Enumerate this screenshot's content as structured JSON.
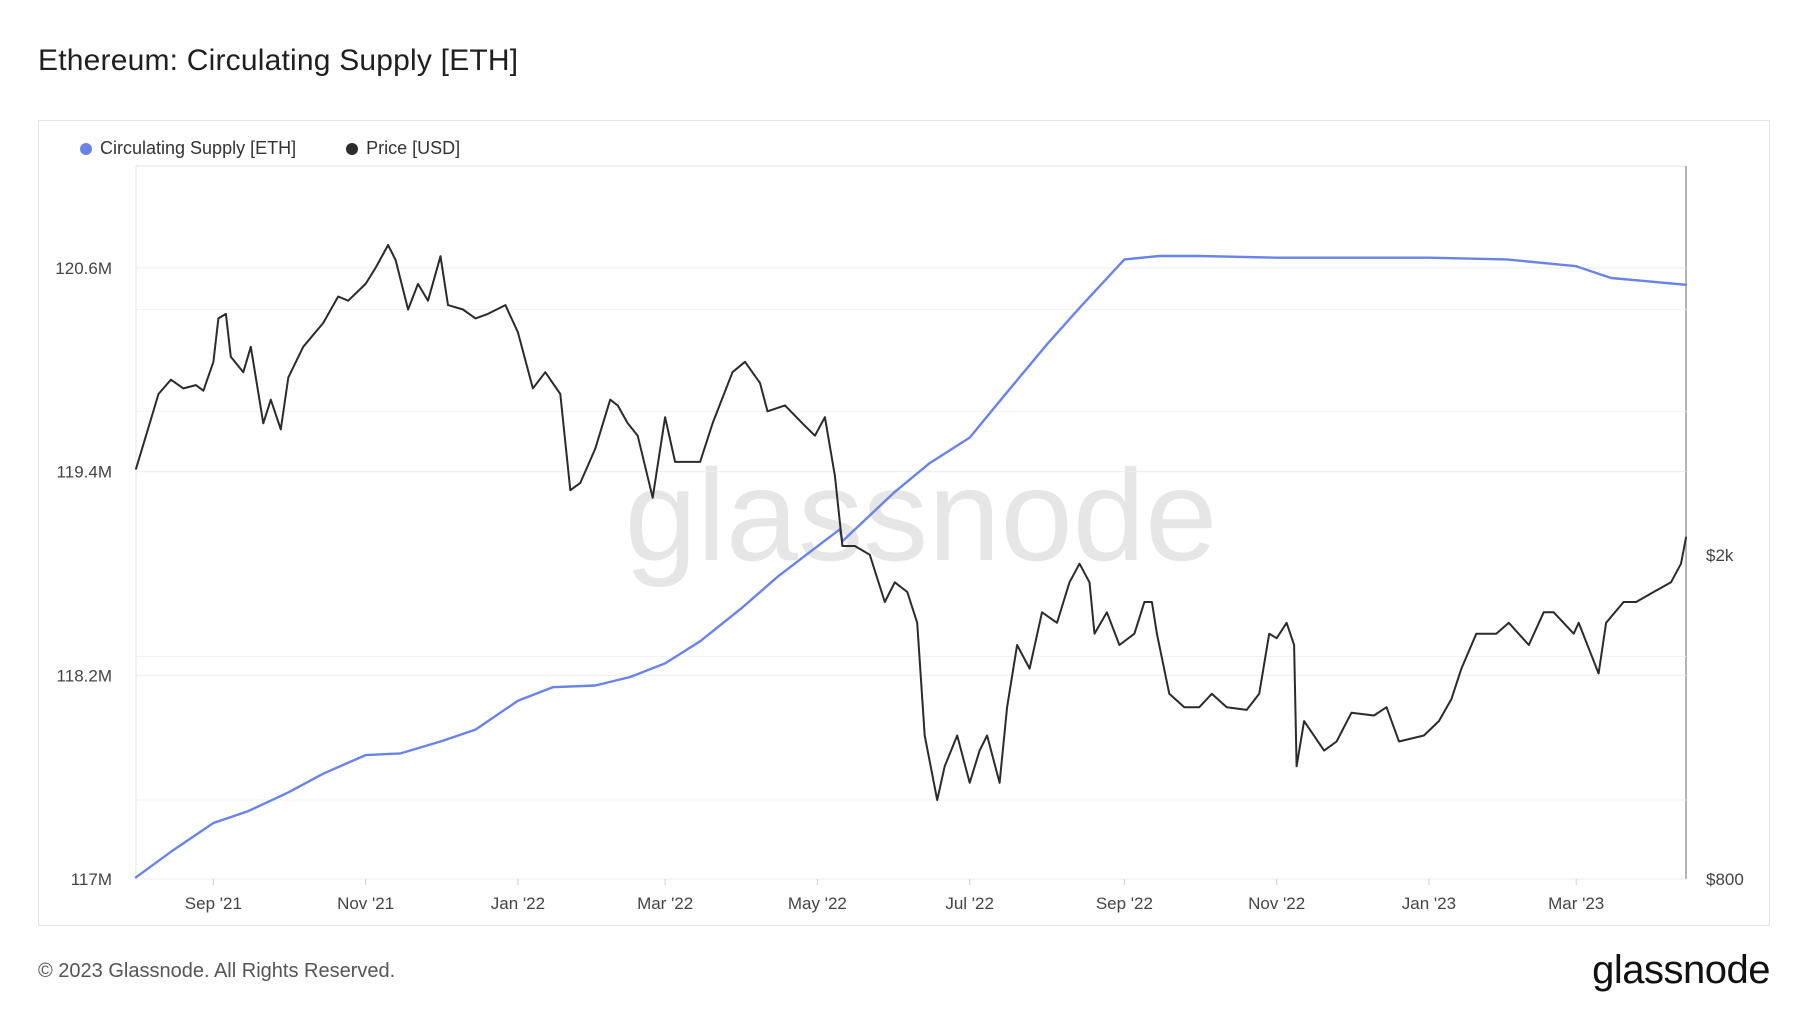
{
  "page": {
    "title": "Ethereum: Circulating Supply [ETH]",
    "copyright": "© 2023 Glassnode. All Rights Reserved.",
    "logo_text": "glassnode",
    "watermark": "glassnode"
  },
  "legend": [
    {
      "label": "Circulating Supply [ETH]",
      "color": "#6a83e6"
    },
    {
      "label": "Price [USD]",
      "color": "#2b2b2b"
    }
  ],
  "chart_data": {
    "type": "line",
    "title": "Ethereum: Circulating Supply [ETH]",
    "x_range": [
      "2021-08-01",
      "2023-04-14"
    ],
    "x_ticks": [
      {
        "date": "2021-09-01",
        "label": "Sep '21"
      },
      {
        "date": "2021-11-01",
        "label": "Nov '21"
      },
      {
        "date": "2022-01-01",
        "label": "Jan '22"
      },
      {
        "date": "2022-03-01",
        "label": "Mar '22"
      },
      {
        "date": "2022-05-01",
        "label": "May '22"
      },
      {
        "date": "2022-07-01",
        "label": "Jul '22"
      },
      {
        "date": "2022-09-01",
        "label": "Sep '22"
      },
      {
        "date": "2022-11-01",
        "label": "Nov '22"
      },
      {
        "date": "2023-01-01",
        "label": "Jan '23"
      },
      {
        "date": "2023-03-01",
        "label": "Mar '23"
      }
    ],
    "y_left": {
      "range": [
        117000000,
        121200000
      ],
      "ticks": [
        {
          "value": 117000000,
          "label": "117M"
        },
        {
          "value": 118200000,
          "label": "118.2M"
        },
        {
          "value": 119400000,
          "label": "119.4M"
        },
        {
          "value": 120600000,
          "label": "120.6M"
        }
      ]
    },
    "y_right": {
      "scale": "log",
      "range": [
        800,
        6000
      ],
      "ticks": [
        {
          "value": 800,
          "label": "$800"
        },
        {
          "value": 2000,
          "label": "$2k"
        }
      ]
    },
    "grid": true,
    "legend_position": "top-left",
    "series": [
      {
        "name": "Circulating Supply [ETH]",
        "axis": "left",
        "color": "#6a83e6",
        "points": [
          [
            "2021-08-01",
            117010000
          ],
          [
            "2021-08-15",
            117160000
          ],
          [
            "2021-09-01",
            117330000
          ],
          [
            "2021-09-15",
            117400000
          ],
          [
            "2021-10-01",
            117510000
          ],
          [
            "2021-10-15",
            117620000
          ],
          [
            "2021-11-01",
            117730000
          ],
          [
            "2021-11-15",
            117740000
          ],
          [
            "2021-12-01",
            117810000
          ],
          [
            "2021-12-15",
            117880000
          ],
          [
            "2022-01-01",
            118050000
          ],
          [
            "2022-01-15",
            118130000
          ],
          [
            "2022-02-01",
            118140000
          ],
          [
            "2022-02-15",
            118190000
          ],
          [
            "2022-03-01",
            118270000
          ],
          [
            "2022-03-15",
            118400000
          ],
          [
            "2022-04-01",
            118600000
          ],
          [
            "2022-04-15",
            118780000
          ],
          [
            "2022-05-01",
            118960000
          ],
          [
            "2022-05-10",
            119060000
          ],
          [
            "2022-05-11",
            118990000
          ],
          [
            "2022-06-01",
            119280000
          ],
          [
            "2022-06-15",
            119450000
          ],
          [
            "2022-07-01",
            119600000
          ],
          [
            "2022-07-15",
            119850000
          ],
          [
            "2022-08-01",
            120150000
          ],
          [
            "2022-08-15",
            120380000
          ],
          [
            "2022-09-01",
            120650000
          ],
          [
            "2022-09-15",
            120670000
          ],
          [
            "2022-10-01",
            120670000
          ],
          [
            "2022-11-01",
            120660000
          ],
          [
            "2022-12-01",
            120660000
          ],
          [
            "2023-01-01",
            120660000
          ],
          [
            "2023-02-01",
            120650000
          ],
          [
            "2023-03-01",
            120610000
          ],
          [
            "2023-03-15",
            120540000
          ],
          [
            "2023-04-14",
            120500000
          ]
        ]
      },
      {
        "name": "Price [USD]",
        "axis": "right",
        "color": "#2b2b2b",
        "points": [
          [
            "2021-08-01",
            2550
          ],
          [
            "2021-08-05",
            2800
          ],
          [
            "2021-08-10",
            3150
          ],
          [
            "2021-08-15",
            3280
          ],
          [
            "2021-08-20",
            3200
          ],
          [
            "2021-08-25",
            3230
          ],
          [
            "2021-08-28",
            3180
          ],
          [
            "2021-09-01",
            3450
          ],
          [
            "2021-09-03",
            3900
          ],
          [
            "2021-09-06",
            3950
          ],
          [
            "2021-09-08",
            3500
          ],
          [
            "2021-09-13",
            3350
          ],
          [
            "2021-09-16",
            3600
          ],
          [
            "2021-09-21",
            2900
          ],
          [
            "2021-09-24",
            3100
          ],
          [
            "2021-09-28",
            2850
          ],
          [
            "2021-10-01",
            3300
          ],
          [
            "2021-10-07",
            3600
          ],
          [
            "2021-10-15",
            3850
          ],
          [
            "2021-10-21",
            4150
          ],
          [
            "2021-10-25",
            4100
          ],
          [
            "2021-11-01",
            4300
          ],
          [
            "2021-11-05",
            4500
          ],
          [
            "2021-11-10",
            4800
          ],
          [
            "2021-11-13",
            4600
          ],
          [
            "2021-11-18",
            4000
          ],
          [
            "2021-11-22",
            4300
          ],
          [
            "2021-11-26",
            4100
          ],
          [
            "2021-12-01",
            4650
          ],
          [
            "2021-12-04",
            4050
          ],
          [
            "2021-12-10",
            4000
          ],
          [
            "2021-12-15",
            3900
          ],
          [
            "2021-12-20",
            3950
          ],
          [
            "2021-12-27",
            4050
          ],
          [
            "2022-01-01",
            3750
          ],
          [
            "2022-01-07",
            3200
          ],
          [
            "2022-01-12",
            3350
          ],
          [
            "2022-01-18",
            3150
          ],
          [
            "2022-01-22",
            2400
          ],
          [
            "2022-01-26",
            2450
          ],
          [
            "2022-02-01",
            2700
          ],
          [
            "2022-02-07",
            3100
          ],
          [
            "2022-02-10",
            3050
          ],
          [
            "2022-02-14",
            2900
          ],
          [
            "2022-02-18",
            2800
          ],
          [
            "2022-02-24",
            2350
          ],
          [
            "2022-03-01",
            2950
          ],
          [
            "2022-03-05",
            2600
          ],
          [
            "2022-03-10",
            2600
          ],
          [
            "2022-03-15",
            2600
          ],
          [
            "2022-03-20",
            2900
          ],
          [
            "2022-03-28",
            3350
          ],
          [
            "2022-04-02",
            3450
          ],
          [
            "2022-04-08",
            3250
          ],
          [
            "2022-04-11",
            3000
          ],
          [
            "2022-04-18",
            3050
          ],
          [
            "2022-04-25",
            2900
          ],
          [
            "2022-04-30",
            2800
          ],
          [
            "2022-05-04",
            2950
          ],
          [
            "2022-05-08",
            2500
          ],
          [
            "2022-05-11",
            2050
          ],
          [
            "2022-05-16",
            2050
          ],
          [
            "2022-05-22",
            2000
          ],
          [
            "2022-05-28",
            1750
          ],
          [
            "2022-06-01",
            1850
          ],
          [
            "2022-06-06",
            1800
          ],
          [
            "2022-06-10",
            1650
          ],
          [
            "2022-06-13",
            1200
          ],
          [
            "2022-06-18",
            1000
          ],
          [
            "2022-06-21",
            1100
          ],
          [
            "2022-06-26",
            1200
          ],
          [
            "2022-07-01",
            1050
          ],
          [
            "2022-07-05",
            1150
          ],
          [
            "2022-07-08",
            1200
          ],
          [
            "2022-07-13",
            1050
          ],
          [
            "2022-07-16",
            1300
          ],
          [
            "2022-07-20",
            1550
          ],
          [
            "2022-07-25",
            1450
          ],
          [
            "2022-07-30",
            1700
          ],
          [
            "2022-08-05",
            1650
          ],
          [
            "2022-08-10",
            1850
          ],
          [
            "2022-08-14",
            1950
          ],
          [
            "2022-08-18",
            1850
          ],
          [
            "2022-08-20",
            1600
          ],
          [
            "2022-08-25",
            1700
          ],
          [
            "2022-08-30",
            1550
          ],
          [
            "2022-09-05",
            1600
          ],
          [
            "2022-09-09",
            1750
          ],
          [
            "2022-09-12",
            1750
          ],
          [
            "2022-09-14",
            1600
          ],
          [
            "2022-09-19",
            1350
          ],
          [
            "2022-09-25",
            1300
          ],
          [
            "2022-10-01",
            1300
          ],
          [
            "2022-10-06",
            1350
          ],
          [
            "2022-10-12",
            1300
          ],
          [
            "2022-10-20",
            1290
          ],
          [
            "2022-10-25",
            1350
          ],
          [
            "2022-10-29",
            1600
          ],
          [
            "2022-11-01",
            1580
          ],
          [
            "2022-11-05",
            1650
          ],
          [
            "2022-11-08",
            1550
          ],
          [
            "2022-11-09",
            1100
          ],
          [
            "2022-11-12",
            1250
          ],
          [
            "2022-11-20",
            1150
          ],
          [
            "2022-11-25",
            1180
          ],
          [
            "2022-12-01",
            1280
          ],
          [
            "2022-12-10",
            1270
          ],
          [
            "2022-12-15",
            1300
          ],
          [
            "2022-12-20",
            1180
          ],
          [
            "2022-12-30",
            1200
          ],
          [
            "2023-01-05",
            1250
          ],
          [
            "2023-01-10",
            1330
          ],
          [
            "2023-01-14",
            1450
          ],
          [
            "2023-01-20",
            1600
          ],
          [
            "2023-01-28",
            1600
          ],
          [
            "2023-02-02",
            1650
          ],
          [
            "2023-02-10",
            1550
          ],
          [
            "2023-02-16",
            1700
          ],
          [
            "2023-02-20",
            1700
          ],
          [
            "2023-02-28",
            1600
          ],
          [
            "2023-03-02",
            1650
          ],
          [
            "2023-03-10",
            1430
          ],
          [
            "2023-03-13",
            1650
          ],
          [
            "2023-03-20",
            1750
          ],
          [
            "2023-03-25",
            1750
          ],
          [
            "2023-04-01",
            1800
          ],
          [
            "2023-04-08",
            1850
          ],
          [
            "2023-04-12",
            1950
          ],
          [
            "2023-04-14",
            2100
          ]
        ]
      }
    ]
  }
}
